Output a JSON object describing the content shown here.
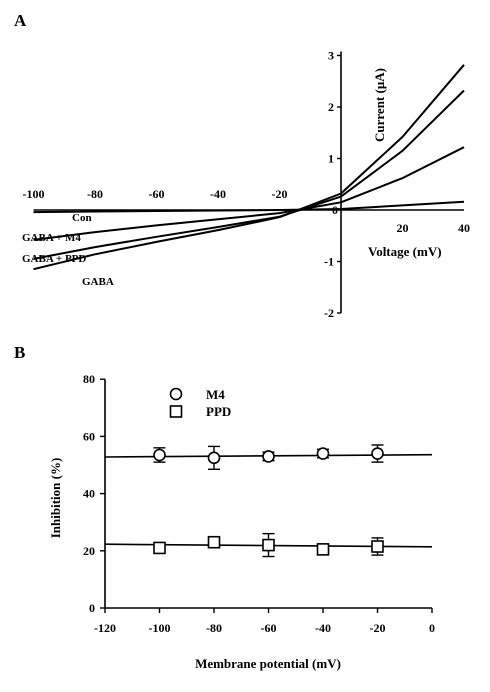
{
  "chart_data": [
    {
      "panel": "A",
      "type": "line",
      "xlabel": "Voltage (mV)",
      "ylabel": "Current (μA)",
      "xlim": [
        -100,
        40
      ],
      "ylim": [
        -2,
        3
      ],
      "x_ticks": [
        "-100",
        "-80",
        "-60",
        "-40",
        "-20",
        "20",
        "40"
      ],
      "y_ticks": [
        "-2",
        "-1",
        "1",
        "2",
        "3"
      ],
      "origin_label": "0",
      "series": [
        {
          "name": "Con",
          "x": [
            -100,
            -80,
            -60,
            -40,
            -20,
            0,
            20,
            40
          ],
          "y": [
            -0.04,
            -0.03,
            -0.02,
            -0.01,
            0.0,
            0.02,
            0.09,
            0.16
          ]
        },
        {
          "name": "GABA + M4",
          "x": [
            -100,
            -80,
            -60,
            -40,
            -20,
            0,
            20,
            40
          ],
          "y": [
            -0.58,
            -0.43,
            -0.3,
            -0.18,
            -0.06,
            0.15,
            0.62,
            1.22
          ]
        },
        {
          "name": "GABA + PPD",
          "x": [
            -100,
            -80,
            -60,
            -40,
            -20,
            0,
            20,
            40
          ],
          "y": [
            -0.95,
            -0.72,
            -0.52,
            -0.33,
            -0.13,
            0.26,
            1.15,
            2.32
          ]
        },
        {
          "name": "GABA",
          "x": [
            -100,
            -80,
            -60,
            -40,
            -20,
            0,
            20,
            40
          ],
          "y": [
            -1.15,
            -0.86,
            -0.62,
            -0.39,
            -0.14,
            0.32,
            1.42,
            2.82
          ]
        }
      ]
    },
    {
      "panel": "B",
      "type": "scatter",
      "xlabel": "Membrane potential (mV)",
      "ylabel": "Inhibition (%)",
      "xlim": [
        -120,
        0
      ],
      "ylim": [
        0,
        80
      ],
      "x_ticks": [
        "-120",
        "-100",
        "-80",
        "-60",
        "-40",
        "-20",
        "0"
      ],
      "y_ticks": [
        "0",
        "20",
        "40",
        "60",
        "80"
      ],
      "legend_position": "top-left",
      "series": [
        {
          "name": "M4",
          "marker": "circle",
          "x": [
            -100,
            -80,
            -60,
            -40,
            -20
          ],
          "y": [
            53.5,
            52.5,
            53,
            54,
            54
          ],
          "err": [
            2.5,
            4,
            1.5,
            1.5,
            3
          ],
          "fit": {
            "x": [
              -120,
              0
            ],
            "y": [
              52.8,
              53.6
            ]
          }
        },
        {
          "name": "PPD",
          "marker": "square",
          "x": [
            -100,
            -80,
            -60,
            -40,
            -20
          ],
          "y": [
            21,
            23,
            22,
            20.5,
            21.5
          ],
          "err": [
            1.5,
            1.5,
            4,
            1,
            3
          ],
          "fit": {
            "x": [
              -120,
              0
            ],
            "y": [
              22.3,
              21.4
            ]
          }
        }
      ]
    }
  ],
  "panel_a": {
    "label": "A",
    "ylabel": "Current (μA)",
    "xlabel": "Voltage (mV)",
    "origin": "0",
    "curve_labels": [
      "Con",
      "GABA + M4",
      "GABA + PPD",
      "GABA"
    ]
  },
  "panel_b": {
    "label": "B",
    "ylabel": "Inhibition (%)",
    "xlabel": "Membrane potential (mV)",
    "legend": [
      "M4",
      "PPD"
    ]
  }
}
